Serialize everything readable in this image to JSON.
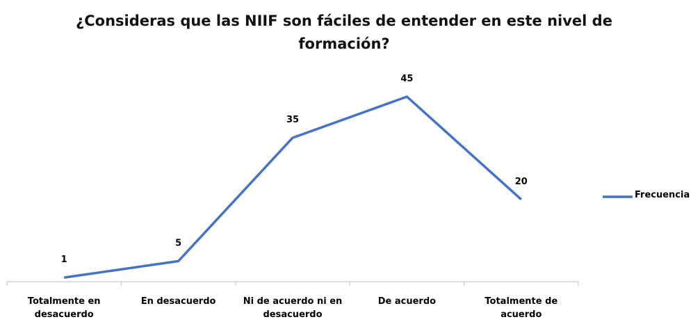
{
  "chart_data": {
    "type": "line",
    "title": "¿Consideras que las NIIF son fáciles de entender en este nivel de formación?",
    "categories": [
      "Totalmente en desacuerdo",
      "En desacuerdo",
      "Ni de acuerdo ni en desacuerdo",
      "De acuerdo",
      "Totalmente de acuerdo"
    ],
    "series": [
      {
        "name": "Frecuencia",
        "color": "#4472c4",
        "values": [
          1,
          5,
          35,
          45,
          20
        ]
      }
    ],
    "data_labels": true,
    "legend": "right"
  }
}
